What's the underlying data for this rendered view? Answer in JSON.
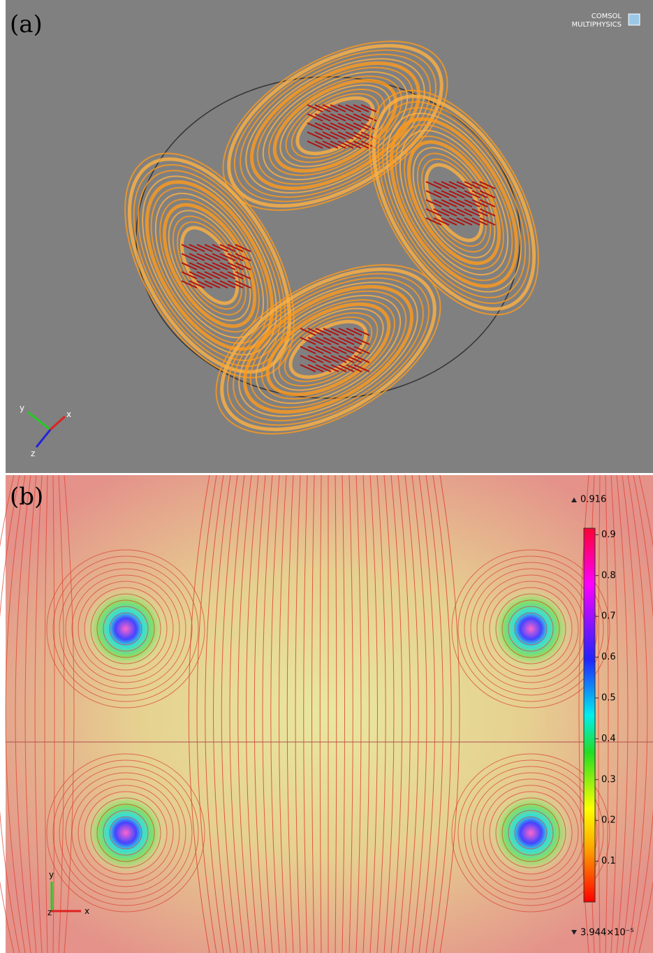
{
  "panel_a": {
    "label": "(a)",
    "logo": [
      "COMSOL",
      "MULTIPHYSICS"
    ],
    "axes": [
      "x",
      "y",
      "z"
    ]
  },
  "panel_b": {
    "label": "(b)",
    "axes": [
      "x",
      "y",
      "z"
    ],
    "colorbar": {
      "max": 0.916,
      "min": {
        "value": 3.944e-05,
        "label": "3.944×10⁻⁵"
      },
      "range": [
        0,
        0.916
      ],
      "ticks": [
        0.1,
        0.2,
        0.3,
        0.4,
        0.5,
        0.6,
        0.7,
        0.8,
        0.9
      ]
    }
  }
}
